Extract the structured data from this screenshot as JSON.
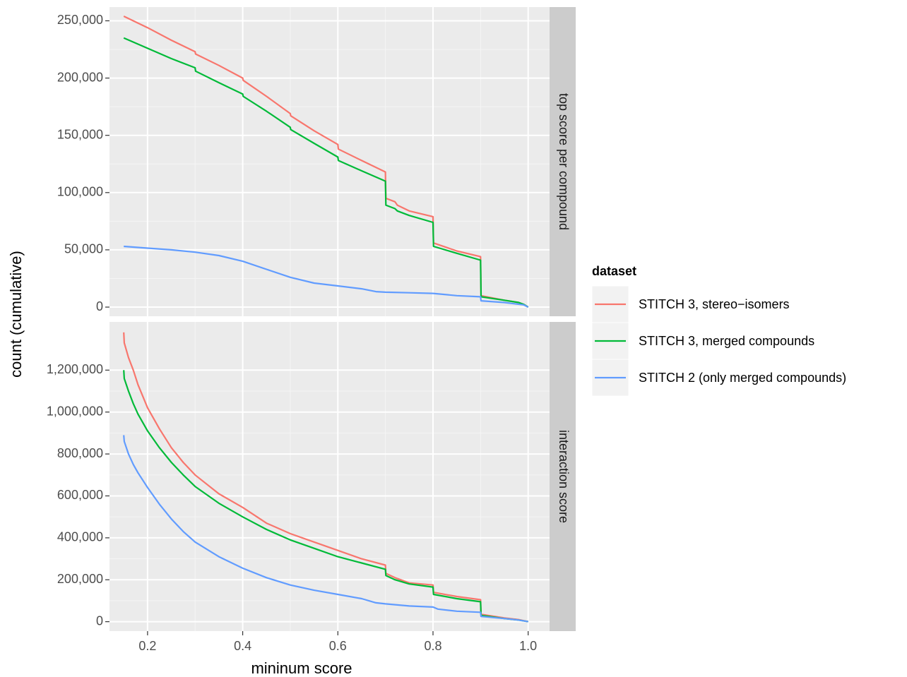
{
  "chart_data": {
    "type": "line",
    "xlabel": "mininum score",
    "ylabel": "count (cumulative)",
    "xlim": [
      0.12,
      1.045
    ],
    "x_ticks": [
      0.2,
      0.4,
      0.6,
      0.8,
      1.0
    ],
    "x_tick_labels": [
      "0.2",
      "0.4",
      "0.6",
      "0.8",
      "1.0"
    ],
    "grid": true,
    "legend": {
      "title": "dataset",
      "position": "right",
      "entries": [
        {
          "label": "STITCH 3, stereo−isomers",
          "color": "#F8766D"
        },
        {
          "label": "STITCH 3, merged compounds",
          "color": "#00BA38"
        },
        {
          "label": "STITCH 2 (only merged compounds)",
          "color": "#619CFF"
        }
      ]
    },
    "panels": [
      {
        "strip": "top score per compound",
        "ylim": [
          -8000,
          262000
        ],
        "y_ticks": [
          0,
          50000,
          100000,
          150000,
          200000,
          250000
        ],
        "y_tick_labels": [
          "0",
          "50,000",
          "100,000",
          "150,000",
          "200,000",
          "250,000"
        ],
        "series": [
          {
            "name": "STITCH 3, stereo−isomers",
            "color": "#F8766D",
            "x": [
              0.15,
              0.2,
              0.25,
              0.3,
              0.301,
              0.35,
              0.4,
              0.401,
              0.45,
              0.5,
              0.501,
              0.55,
              0.6,
              0.601,
              0.65,
              0.7,
              0.701,
              0.72,
              0.725,
              0.75,
              0.8,
              0.801,
              0.85,
              0.9,
              0.901,
              0.95,
              0.98,
              0.99,
              1.0
            ],
            "y": [
              254000,
              244000,
              233000,
              223000,
              221000,
              211000,
              200000,
              198000,
              184000,
              169000,
              167000,
              154000,
              142000,
              138000,
              128000,
              118000,
              95000,
              92000,
              89000,
              84000,
              79000,
              56000,
              49000,
              44000,
              10000,
              6000,
              4000,
              2500,
              0
            ]
          },
          {
            "name": "STITCH 3, merged compounds",
            "color": "#00BA38",
            "x": [
              0.15,
              0.2,
              0.25,
              0.3,
              0.301,
              0.35,
              0.4,
              0.401,
              0.45,
              0.5,
              0.501,
              0.55,
              0.6,
              0.601,
              0.65,
              0.7,
              0.701,
              0.72,
              0.725,
              0.75,
              0.8,
              0.801,
              0.85,
              0.9,
              0.901,
              0.95,
              0.98,
              0.99,
              1.0
            ],
            "y": [
              235000,
              226000,
              217000,
              209000,
              206000,
              196000,
              186000,
              184000,
              171000,
              157000,
              155000,
              143000,
              131000,
              128000,
              119000,
              110000,
              89000,
              86000,
              84000,
              80000,
              74000,
              53000,
              47000,
              41000,
              9000,
              6000,
              4000,
              2500,
              0
            ]
          },
          {
            "name": "STITCH 2 (only merged compounds)",
            "color": "#619CFF",
            "x": [
              0.15,
              0.2,
              0.25,
              0.3,
              0.35,
              0.4,
              0.45,
              0.5,
              0.55,
              0.6,
              0.65,
              0.68,
              0.7,
              0.75,
              0.8,
              0.85,
              0.9,
              0.901,
              0.95,
              0.99,
              1.0
            ],
            "y": [
              53000,
              51500,
              50000,
              48000,
              45000,
              40000,
              33000,
              26000,
              21000,
              18500,
              16000,
              13500,
              13000,
              12500,
              12000,
              10000,
              9000,
              5500,
              4000,
              2000,
              0
            ]
          }
        ]
      },
      {
        "strip": "interaction score",
        "ylim": [
          -45000,
          1430000
        ],
        "y_ticks": [
          0,
          200000,
          400000,
          600000,
          800000,
          1000000,
          1200000
        ],
        "y_tick_labels": [
          "0",
          "200,000",
          "400,000",
          "600,000",
          "800,000",
          "1,000,000",
          "1,200,000"
        ],
        "series": [
          {
            "name": "STITCH 3, stereo−isomers",
            "color": "#F8766D",
            "x": [
              0.15,
              0.151,
              0.16,
              0.17,
              0.18,
              0.2,
              0.225,
              0.25,
              0.275,
              0.3,
              0.35,
              0.4,
              0.45,
              0.5,
              0.55,
              0.6,
              0.65,
              0.7,
              0.701,
              0.72,
              0.75,
              0.8,
              0.801,
              0.85,
              0.9,
              0.901,
              0.95,
              0.98,
              1.0
            ],
            "y": [
              1380000,
              1330000,
              1260000,
              1200000,
              1130000,
              1020000,
              920000,
              830000,
              760000,
              700000,
              610000,
              545000,
              470000,
              420000,
              380000,
              340000,
              300000,
              270000,
              230000,
              210000,
              185000,
              175000,
              140000,
              120000,
              105000,
              35000,
              18000,
              10000,
              0
            ]
          },
          {
            "name": "STITCH 3, merged compounds",
            "color": "#00BA38",
            "x": [
              0.15,
              0.151,
              0.16,
              0.17,
              0.18,
              0.2,
              0.225,
              0.25,
              0.275,
              0.3,
              0.35,
              0.4,
              0.45,
              0.5,
              0.55,
              0.6,
              0.65,
              0.7,
              0.701,
              0.72,
              0.75,
              0.8,
              0.801,
              0.85,
              0.9,
              0.901,
              0.95,
              0.98,
              1.0
            ],
            "y": [
              1200000,
              1160000,
              1100000,
              1040000,
              990000,
              910000,
              830000,
              760000,
              700000,
              645000,
              565000,
              500000,
              440000,
              390000,
              350000,
              310000,
              280000,
              250000,
              220000,
              200000,
              180000,
              165000,
              130000,
              110000,
              95000,
              30000,
              15000,
              8000,
              0
            ]
          },
          {
            "name": "STITCH 2 (only merged compounds)",
            "color": "#619CFF",
            "x": [
              0.15,
              0.151,
              0.16,
              0.17,
              0.18,
              0.2,
              0.225,
              0.25,
              0.275,
              0.3,
              0.35,
              0.4,
              0.45,
              0.5,
              0.55,
              0.6,
              0.65,
              0.68,
              0.7,
              0.75,
              0.8,
              0.81,
              0.85,
              0.9,
              0.901,
              0.95,
              0.98,
              1.0
            ],
            "y": [
              890000,
              860000,
              800000,
              750000,
              710000,
              640000,
              560000,
              490000,
              430000,
              380000,
              310000,
              255000,
              210000,
              175000,
              150000,
              130000,
              110000,
              90000,
              85000,
              75000,
              70000,
              60000,
              50000,
              45000,
              25000,
              15000,
              8000,
              0
            ]
          }
        ]
      }
    ]
  }
}
